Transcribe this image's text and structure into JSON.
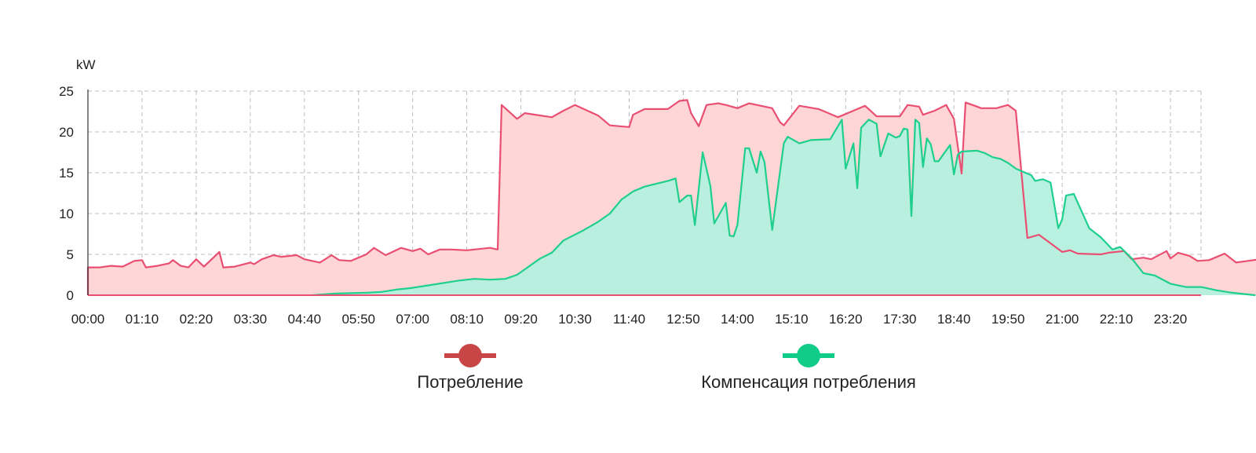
{
  "chart_data": {
    "type": "area",
    "title": "",
    "xlabel": "",
    "ylabel": "kW",
    "ylim": [
      0,
      25
    ],
    "y_ticks": [
      "0",
      "5",
      "10",
      "15",
      "20",
      "25"
    ],
    "x_ticks": [
      "00:00",
      "01:10",
      "02:20",
      "03:30",
      "04:40",
      "05:50",
      "07:00",
      "08:10",
      "09:20",
      "10:30",
      "11:40",
      "12:50",
      "14:00",
      "15:10",
      "16:20",
      "17:30",
      "18:40",
      "19:50",
      "21:00",
      "22:10",
      "23:20"
    ],
    "grid": true,
    "legend_position": "bottom",
    "series": [
      {
        "name": "Потребление",
        "line_color": "#e94f72",
        "fill_color": "#ffd6d6",
        "legend_color": "#c94646",
        "points": [
          [
            "00:00",
            3.4
          ],
          [
            "00:15",
            3.4
          ],
          [
            "00:30",
            3.6
          ],
          [
            "00:45",
            3.5
          ],
          [
            "01:00",
            4.2
          ],
          [
            "01:10",
            4.3
          ],
          [
            "01:15",
            3.4
          ],
          [
            "01:30",
            3.6
          ],
          [
            "01:45",
            3.9
          ],
          [
            "01:50",
            4.3
          ],
          [
            "02:00",
            3.6
          ],
          [
            "02:10",
            3.4
          ],
          [
            "02:20",
            4.4
          ],
          [
            "02:30",
            3.5
          ],
          [
            "02:50",
            5.3
          ],
          [
            "02:55",
            3.4
          ],
          [
            "03:10",
            3.5
          ],
          [
            "03:30",
            4.0
          ],
          [
            "03:35",
            3.8
          ],
          [
            "03:45",
            4.4
          ],
          [
            "04:00",
            4.9
          ],
          [
            "04:10",
            4.7
          ],
          [
            "04:30",
            4.9
          ],
          [
            "04:40",
            4.4
          ],
          [
            "05:00",
            4.0
          ],
          [
            "05:15",
            4.9
          ],
          [
            "05:25",
            4.3
          ],
          [
            "05:40",
            4.2
          ],
          [
            "06:00",
            5.0
          ],
          [
            "06:10",
            5.8
          ],
          [
            "06:25",
            4.9
          ],
          [
            "06:45",
            5.8
          ],
          [
            "07:00",
            5.4
          ],
          [
            "07:10",
            5.7
          ],
          [
            "07:20",
            5.0
          ],
          [
            "07:35",
            5.6
          ],
          [
            "07:50",
            5.6
          ],
          [
            "08:10",
            5.5
          ],
          [
            "08:40",
            5.8
          ],
          [
            "08:50",
            5.6
          ],
          [
            "08:55",
            23.3
          ],
          [
            "09:15",
            21.6
          ],
          [
            "09:25",
            22.3
          ],
          [
            "10:00",
            21.8
          ],
          [
            "10:15",
            22.6
          ],
          [
            "10:30",
            23.3
          ],
          [
            "11:00",
            22.0
          ],
          [
            "11:15",
            20.8
          ],
          [
            "11:40",
            20.6
          ],
          [
            "11:45",
            22.1
          ],
          [
            "12:00",
            22.8
          ],
          [
            "12:30",
            22.8
          ],
          [
            "12:45",
            23.8
          ],
          [
            "12:55",
            23.9
          ],
          [
            "13:00",
            22.3
          ],
          [
            "13:10",
            20.7
          ],
          [
            "13:20",
            23.3
          ],
          [
            "13:35",
            23.5
          ],
          [
            "13:45",
            23.3
          ],
          [
            "14:00",
            22.9
          ],
          [
            "14:15",
            23.5
          ],
          [
            "14:45",
            22.9
          ],
          [
            "14:55",
            21.2
          ],
          [
            "15:00",
            20.8
          ],
          [
            "15:20",
            23.2
          ],
          [
            "15:45",
            22.8
          ],
          [
            "15:55",
            22.4
          ],
          [
            "16:10",
            21.8
          ],
          [
            "16:30",
            22.6
          ],
          [
            "16:45",
            23.2
          ],
          [
            "17:00",
            21.9
          ],
          [
            "17:30",
            21.9
          ],
          [
            "17:40",
            23.3
          ],
          [
            "17:55",
            23.1
          ],
          [
            "18:00",
            22.1
          ],
          [
            "18:15",
            22.6
          ],
          [
            "18:30",
            23.3
          ],
          [
            "18:40",
            21.6
          ],
          [
            "18:50",
            14.9
          ],
          [
            "18:55",
            23.6
          ],
          [
            "19:10",
            23.1
          ],
          [
            "19:15",
            22.9
          ],
          [
            "19:35",
            22.9
          ],
          [
            "19:50",
            23.3
          ],
          [
            "20:00",
            22.6
          ],
          [
            "20:15",
            7.0
          ],
          [
            "20:30",
            7.4
          ],
          [
            "21:00",
            5.3
          ],
          [
            "21:10",
            5.5
          ],
          [
            "21:20",
            5.1
          ],
          [
            "21:50",
            5.0
          ],
          [
            "22:00",
            5.2
          ],
          [
            "22:20",
            5.4
          ],
          [
            "22:30",
            4.4
          ],
          [
            "22:45",
            4.6
          ],
          [
            "22:55",
            4.4
          ],
          [
            "23:15",
            5.4
          ],
          [
            "23:20",
            4.5
          ],
          [
            "23:30",
            5.2
          ],
          [
            "23:45",
            4.8
          ],
          [
            "23:55",
            4.2
          ],
          [
            "24:10",
            4.3
          ],
          [
            "24:30",
            5.1
          ],
          [
            "24:45",
            4.0
          ],
          [
            "25:00",
            4.2
          ],
          [
            "25:30",
            4.6
          ],
          [
            "25:45",
            4.9
          ],
          [
            "26:10",
            4.8
          ],
          [
            "26:20",
            4.9
          ],
          [
            "26:30",
            5.0
          ],
          [
            "26:40",
            4.7
          ],
          [
            "26:55",
            4.2
          ]
        ],
        "note_x_axis": "times on the axis of the chart"
      },
      {
        "name": "Компенсация потребления",
        "line_color": "#1ecf8e",
        "fill_color": "#b5f0de",
        "legend_color": "#10cc88",
        "points": [
          [
            "04:50",
            0.0
          ],
          [
            "05:20",
            0.2
          ],
          [
            "06:00",
            0.3
          ],
          [
            "06:20",
            0.4
          ],
          [
            "06:40",
            0.7
          ],
          [
            "07:00",
            0.9
          ],
          [
            "07:20",
            1.2
          ],
          [
            "07:40",
            1.5
          ],
          [
            "08:00",
            1.8
          ],
          [
            "08:20",
            2.0
          ],
          [
            "08:40",
            1.9
          ],
          [
            "09:00",
            2.0
          ],
          [
            "09:15",
            2.5
          ],
          [
            "09:30",
            3.5
          ],
          [
            "09:45",
            4.5
          ],
          [
            "10:00",
            5.2
          ],
          [
            "10:15",
            6.7
          ],
          [
            "10:40",
            7.9
          ],
          [
            "11:00",
            9.0
          ],
          [
            "11:15",
            10.0
          ],
          [
            "11:30",
            11.7
          ],
          [
            "11:45",
            12.7
          ],
          [
            "12:00",
            13.3
          ],
          [
            "12:30",
            14.0
          ],
          [
            "12:40",
            14.3
          ],
          [
            "12:45",
            11.4
          ],
          [
            "12:55",
            12.2
          ],
          [
            "13:00",
            12.2
          ],
          [
            "13:05",
            8.6
          ],
          [
            "13:15",
            17.5
          ],
          [
            "13:25",
            13.4
          ],
          [
            "13:30",
            8.8
          ],
          [
            "13:45",
            11.3
          ],
          [
            "13:50",
            7.3
          ],
          [
            "13:55",
            7.2
          ],
          [
            "14:00",
            8.6
          ],
          [
            "14:10",
            18.0
          ],
          [
            "14:15",
            18.0
          ],
          [
            "14:25",
            15.0
          ],
          [
            "14:30",
            17.6
          ],
          [
            "14:35",
            16.3
          ],
          [
            "14:45",
            8.0
          ],
          [
            "15:00",
            18.6
          ],
          [
            "15:05",
            19.4
          ],
          [
            "15:20",
            18.6
          ],
          [
            "15:35",
            19.0
          ],
          [
            "16:00",
            19.1
          ],
          [
            "16:15",
            21.5
          ],
          [
            "16:20",
            15.5
          ],
          [
            "16:30",
            18.6
          ],
          [
            "16:35",
            13.1
          ],
          [
            "16:40",
            20.5
          ],
          [
            "16:50",
            21.5
          ],
          [
            "17:00",
            21.0
          ],
          [
            "17:05",
            17.0
          ],
          [
            "17:15",
            19.8
          ],
          [
            "17:25",
            19.3
          ],
          [
            "17:30",
            19.5
          ],
          [
            "17:35",
            20.4
          ],
          [
            "17:40",
            20.3
          ],
          [
            "17:45",
            9.7
          ],
          [
            "17:50",
            21.5
          ],
          [
            "17:55",
            21.1
          ],
          [
            "18:00",
            15.7
          ],
          [
            "18:05",
            19.2
          ],
          [
            "18:10",
            18.5
          ],
          [
            "18:15",
            16.4
          ],
          [
            "18:20",
            16.4
          ],
          [
            "18:35",
            18.4
          ],
          [
            "18:40",
            14.8
          ],
          [
            "18:45",
            17.2
          ],
          [
            "18:50",
            17.6
          ],
          [
            "19:10",
            17.7
          ],
          [
            "19:20",
            17.4
          ],
          [
            "19:30",
            16.9
          ],
          [
            "19:40",
            16.7
          ],
          [
            "19:50",
            16.2
          ],
          [
            "20:00",
            15.5
          ],
          [
            "20:10",
            15.1
          ],
          [
            "20:20",
            14.7
          ],
          [
            "20:25",
            14.0
          ],
          [
            "20:35",
            14.2
          ],
          [
            "20:45",
            13.8
          ],
          [
            "20:55",
            8.2
          ],
          [
            "21:00",
            9.3
          ],
          [
            "21:05",
            12.2
          ],
          [
            "21:15",
            12.4
          ],
          [
            "21:35",
            8.2
          ],
          [
            "21:50",
            7.1
          ],
          [
            "22:05",
            5.6
          ],
          [
            "22:15",
            5.9
          ],
          [
            "22:30",
            4.5
          ],
          [
            "22:45",
            2.7
          ],
          [
            "23:00",
            2.4
          ],
          [
            "23:20",
            1.4
          ],
          [
            "23:40",
            1.0
          ],
          [
            "24:00",
            1.0
          ],
          [
            "24:20",
            0.6
          ],
          [
            "24:40",
            0.3
          ],
          [
            "25:00",
            0.1
          ],
          [
            "25:10",
            0.0
          ]
        ],
        "note_x_axis": "times on the axis of the chart"
      }
    ]
  }
}
